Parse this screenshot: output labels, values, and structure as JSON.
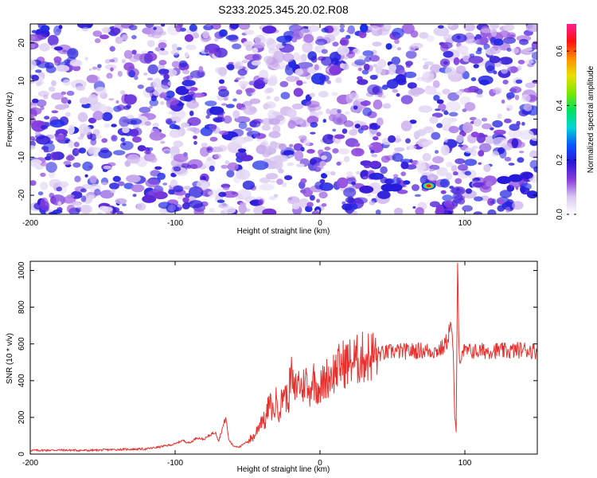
{
  "chart_data": [
    {
      "type": "heatmap",
      "title": "S233.2025.345.20.02.R08",
      "xlabel": "Height of straight line (km)",
      "ylabel": "Frequency (Hz)",
      "xlim": [
        -200,
        150
      ],
      "ylim": [
        -25,
        25
      ],
      "x_ticks": [
        -200,
        -100,
        0,
        100
      ],
      "y_ticks": [
        -20,
        -10,
        0,
        10,
        20
      ],
      "colorbar": {
        "label": "Normalized spectral amplitude",
        "range": [
          0,
          0.7
        ],
        "ticks": [
          0.0,
          0.2,
          0.4,
          0.6
        ],
        "tick_labels": [
          "0.0",
          "0.2",
          "0.4",
          "0.6"
        ],
        "colors": [
          "#ffffff",
          "#d9c8f0",
          "#8a3ddc",
          "#2a16d8",
          "#0a55ff",
          "#00d5d5",
          "#00e060",
          "#7ce600",
          "#e8e000",
          "#ff8c00",
          "#ff1010",
          "#ff2090"
        ]
      },
      "hotspots": [
        {
          "x": 75,
          "y": -17.5,
          "value": 0.68
        },
        {
          "x": 47,
          "y": -18,
          "value": 0.28
        },
        {
          "x": 52,
          "y": -18,
          "value": 0.24
        },
        {
          "x": 32,
          "y": -18.5,
          "value": 0.18
        },
        {
          "x": 127,
          "y": -16,
          "value": 0.22
        },
        {
          "x": 135,
          "y": -15.5,
          "value": 0.2
        },
        {
          "x": -118,
          "y": -21,
          "value": 0.16
        },
        {
          "x": -110,
          "y": -20,
          "value": 0.14
        },
        {
          "x": -35,
          "y": 23.5,
          "value": 0.16
        },
        {
          "x": -35,
          "y": -24.5,
          "value": 0.14
        }
      ]
    },
    {
      "type": "line",
      "xlabel": "Height of straight line (km)",
      "ylabel": "SNR (10 * v/v)",
      "xlim": [
        -200,
        150
      ],
      "ylim": [
        0,
        1050
      ],
      "x_ticks": [
        -200,
        -100,
        0,
        100
      ],
      "y_ticks": [
        0,
        200,
        400,
        600,
        800,
        1000
      ],
      "series": [
        {
          "color": "#e8312e",
          "x": [
            -200,
            -180,
            -160,
            -140,
            -120,
            -110,
            -100,
            -95,
            -90,
            -85,
            -80,
            -75,
            -72,
            -70,
            -67,
            -65,
            -63,
            -60,
            -55,
            -50,
            -45,
            -40,
            -38,
            -35,
            -32,
            -30,
            -28,
            -25,
            -22,
            -20,
            -18,
            -15,
            -12,
            -10,
            -8,
            -5,
            -3,
            0,
            5,
            10,
            15,
            20,
            25,
            30,
            35,
            40,
            45,
            50,
            60,
            70,
            80,
            85,
            88,
            90,
            92,
            93,
            94,
            95,
            96,
            97,
            98,
            100,
            110,
            120,
            130,
            140,
            150
          ],
          "y": [
            20,
            22,
            20,
            25,
            28,
            40,
            55,
            75,
            60,
            90,
            80,
            110,
            120,
            70,
            150,
            200,
            80,
            45,
            40,
            70,
            100,
            200,
            170,
            280,
            220,
            300,
            230,
            350,
            280,
            450,
            330,
            400,
            350,
            430,
            320,
            420,
            380,
            360,
            420,
            450,
            490,
            500,
            510,
            525,
            535,
            545,
            550,
            560,
            560,
            565,
            560,
            580,
            620,
            720,
            560,
            200,
            120,
            1040,
            580,
            500,
            560,
            560,
            560,
            565,
            560,
            570,
            560
          ]
        }
      ]
    }
  ]
}
